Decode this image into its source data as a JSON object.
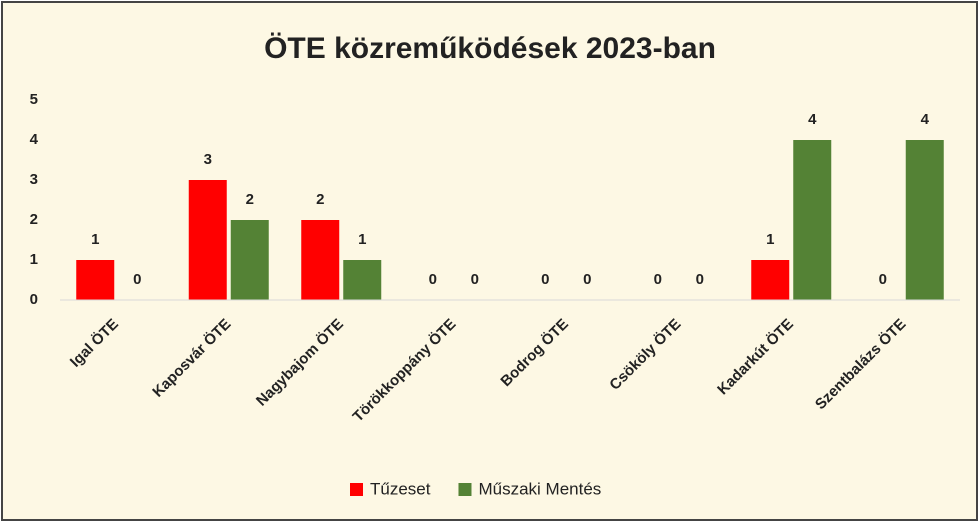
{
  "chart_data": {
    "type": "bar",
    "title": "ÖTE közreműködések 2023-ban",
    "categories": [
      "Igal ÖTE",
      "Kaposvár ÖTE",
      "Nagybajom ÖTE",
      "Törökkoppány ÖTE",
      "Bodrog ÖTE",
      "Csököly ÖTE",
      "Kadarkút ÖTE",
      "Szentbalázs ÖTE"
    ],
    "series": [
      {
        "name": "Tűzeset",
        "color": "#ff0000",
        "values": [
          1,
          3,
          2,
          0,
          0,
          0,
          1,
          0
        ]
      },
      {
        "name": "Műszaki Mentés",
        "color": "#548235",
        "values": [
          0,
          2,
          1,
          0,
          0,
          0,
          4,
          4
        ]
      }
    ],
    "ylim": [
      0,
      5
    ],
    "yticks": [
      0,
      1,
      2,
      3,
      4,
      5
    ],
    "grid": false,
    "legend": "bottom"
  }
}
